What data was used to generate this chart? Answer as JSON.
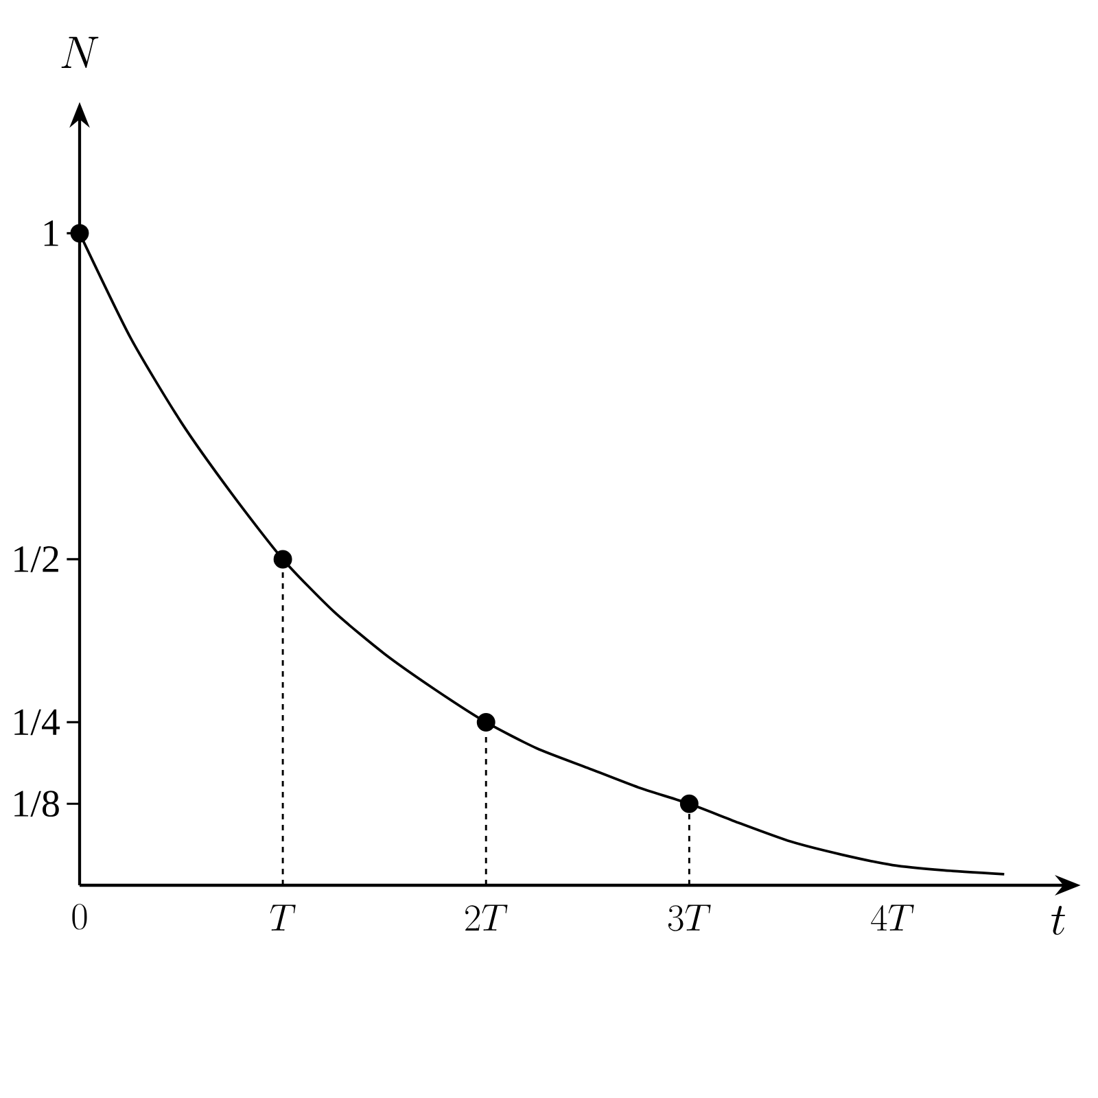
{
  "chart_data": {
    "type": "line",
    "xlabel": "t",
    "ylabel": "N",
    "xlim": [
      0,
      4.89
    ],
    "ylim": [
      0,
      1.19
    ],
    "xticks": [
      {
        "value": 0,
        "label": "0"
      },
      {
        "value": 1,
        "label": "T"
      },
      {
        "value": 2,
        "label": "2T"
      },
      {
        "value": 3,
        "label": "3T"
      },
      {
        "value": 4,
        "label": "4T"
      }
    ],
    "yticks": [
      {
        "value": 0.125,
        "label": "1/8"
      },
      {
        "value": 0.25,
        "label": "1/4"
      },
      {
        "value": 0.5,
        "label": "1/2"
      },
      1
    ],
    "grid": false,
    "legend": false,
    "series": [
      {
        "color": "#000000",
        "x": [
          0,
          0.25,
          0.5,
          0.75,
          1,
          1.25,
          1.5,
          1.75,
          2,
          2.25,
          2.5,
          2.75,
          3,
          3.25,
          3.5,
          3.75,
          4,
          4.25,
          4.55
        ],
        "values": [
          1,
          0.84,
          0.71,
          0.6,
          0.5,
          0.42,
          0.355,
          0.3,
          0.25,
          0.21,
          0.18,
          0.15,
          0.125,
          0.095,
          0.067,
          0.047,
          0.031,
          0.023,
          0.017
        ],
        "marker": "none",
        "line_style": "solid"
      },
      {
        "type": "lollipop",
        "color": "#000000",
        "x": [
          0,
          1,
          2,
          3
        ],
        "values": [
          1,
          0.5,
          0.25,
          0.125
        ],
        "marker": "circle",
        "line_style": "dashed"
      }
    ]
  }
}
